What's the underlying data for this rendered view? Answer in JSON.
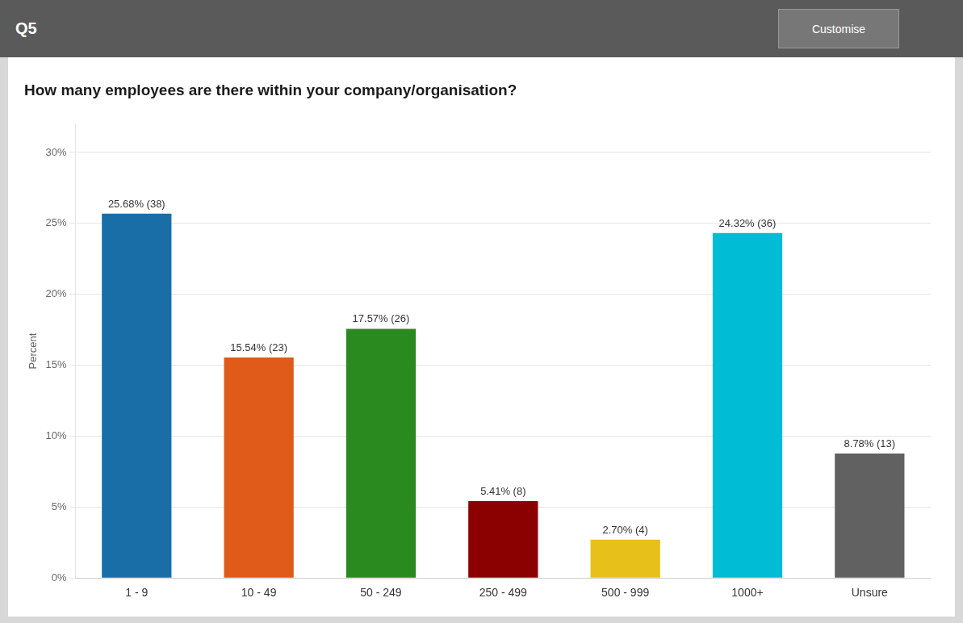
{
  "chart_data": {
    "type": "bar",
    "title": "How many employees are there within your company/organisation?",
    "annotations": [
      "Q5",
      "Customise"
    ],
    "categories": [
      "1 - 9",
      "10 - 49",
      "50 - 249",
      "250 - 499",
      "500 - 999",
      "1000+",
      "Unsure"
    ],
    "values": [
      25.68,
      15.54,
      17.57,
      5.41,
      2.7,
      24.32,
      8.78
    ],
    "value_labels": [
      "25.68% (38)",
      "15.54% (23)",
      "17.57% (26)",
      "5.41% (8)",
      "2.70% (4)",
      "24.32% (36)",
      "8.78% (13)"
    ],
    "data_labels": true,
    "colors": [
      "#1a6ea8",
      "#e05a1a",
      "#2a8a20",
      "#8b0000",
      "#e8c01a",
      "#00bcd4",
      "#616161"
    ],
    "ylabel": "Percent",
    "ylim": [
      0,
      32
    ],
    "yticks": [
      {
        "value": 0,
        "label": "0%"
      },
      {
        "value": 5,
        "label": "5%"
      },
      {
        "value": 10,
        "label": "10%"
      },
      {
        "value": 15,
        "label": "15%"
      },
      {
        "value": 20,
        "label": "20%"
      },
      {
        "value": 25,
        "label": "25%"
      },
      {
        "value": 30,
        "label": "30%"
      }
    ],
    "grid": true
  }
}
